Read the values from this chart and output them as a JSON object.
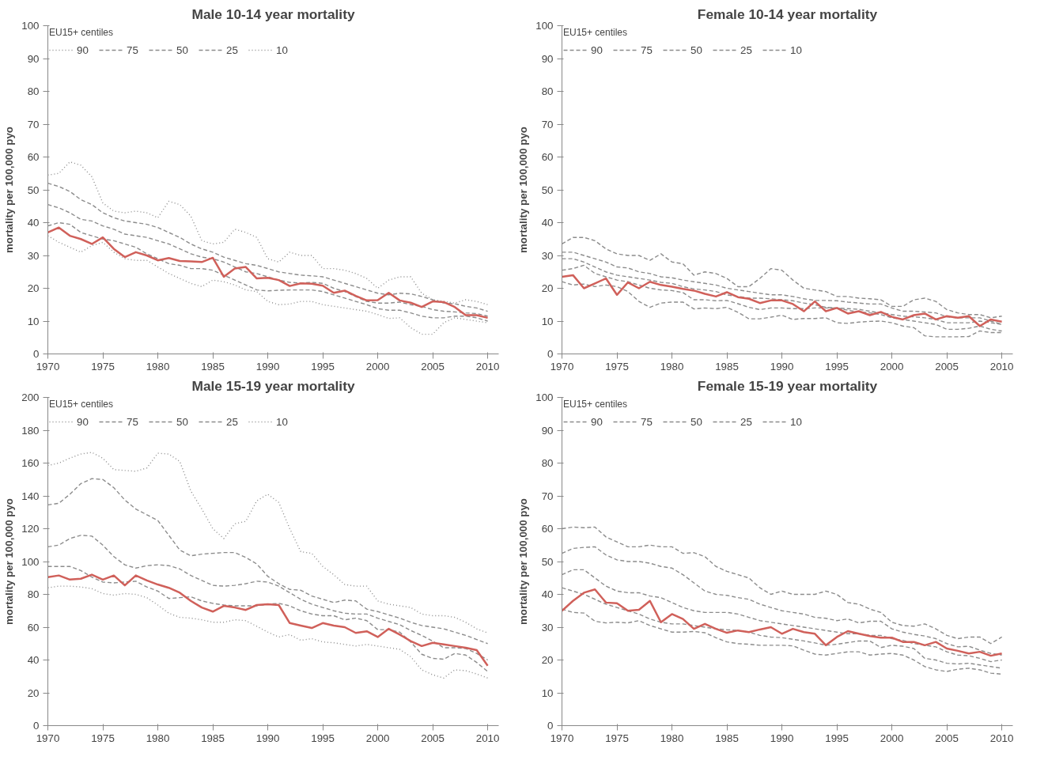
{
  "chart_data": [
    {
      "type": "line",
      "legend": "top left",
      "title": "Male 10-14 year mortality",
      "ylabel": "mortality per 100,000 pyo",
      "legend_title": "EU15+ centiles",
      "x": [
        1970,
        1971,
        1972,
        1973,
        1974,
        1975,
        1976,
        1977,
        1978,
        1979,
        1980,
        1981,
        1982,
        1983,
        1984,
        1985,
        1986,
        1987,
        1988,
        1989,
        1990,
        1991,
        1992,
        1993,
        1994,
        1995,
        1996,
        1997,
        1998,
        1999,
        2000,
        2001,
        2002,
        2003,
        2004,
        2005,
        2006,
        2007,
        2008,
        2009,
        2010
      ],
      "xlim": [
        1970,
        2011
      ],
      "xticks": [
        1970,
        1975,
        1980,
        1985,
        1990,
        1995,
        2000,
        2005,
        2010
      ],
      "ylim": [
        0,
        100
      ],
      "yticks": [
        0,
        10,
        20,
        30,
        40,
        50,
        60,
        70,
        80,
        90,
        100
      ],
      "series": [
        {
          "name": "90",
          "color": "#8c8c8c",
          "line_style": "dotted",
          "values": [
            54.5,
            55,
            58.5,
            57.5,
            54,
            46,
            43.5,
            43,
            43.5,
            43,
            41.5,
            46.5,
            45.5,
            42,
            34.5,
            33.5,
            34,
            38,
            37,
            35.5,
            29,
            28,
            31,
            30,
            30,
            26,
            26,
            25.5,
            24.5,
            23,
            20,
            22.5,
            23.5,
            23.5,
            18.5,
            16.5,
            16,
            15.5,
            16.5,
            16,
            15
          ]
        },
        {
          "name": "75",
          "color": "#8c8c8c",
          "line_style": "dashed",
          "values": [
            52,
            51,
            49.5,
            47,
            45.5,
            43,
            41.5,
            40.5,
            40,
            39.5,
            38.5,
            37,
            35.5,
            33.5,
            32,
            31,
            29.5,
            28.5,
            27.5,
            27,
            26,
            25,
            24.5,
            24,
            23.8,
            23.5,
            22.5,
            21.5,
            20.5,
            19.5,
            18.5,
            18,
            18.5,
            18.3,
            17.5,
            16.5,
            15.5,
            15.3,
            14.5,
            14,
            13
          ]
        },
        {
          "name": "50",
          "color": "#8c8c8c",
          "line_style": "dashed",
          "values": [
            45.5,
            44.5,
            43,
            41,
            40.5,
            39,
            38,
            36.5,
            36,
            35.5,
            34.5,
            33.5,
            32,
            30.5,
            29.5,
            29,
            28,
            26.5,
            25,
            24.5,
            23.5,
            22.5,
            21.8,
            21.6,
            21.8,
            21.5,
            20,
            19,
            17.5,
            16,
            15.5,
            15.5,
            15.8,
            15,
            14.5,
            13.5,
            13,
            12.8,
            12.5,
            12.3,
            11.5
          ]
        },
        {
          "name": "25",
          "color": "#8c8c8c",
          "line_style": "dashed",
          "values": [
            39,
            40,
            39.5,
            37,
            36,
            35,
            34.5,
            33.5,
            32.5,
            30.5,
            29,
            27.5,
            27,
            26,
            26,
            25.5,
            24,
            22.5,
            21,
            19.5,
            19.2,
            19.4,
            19.5,
            19.5,
            19.5,
            19,
            18,
            17,
            16,
            15,
            13.8,
            13.3,
            13.3,
            12.5,
            11.5,
            11,
            11,
            11.5,
            11.5,
            11,
            10
          ]
        },
        {
          "name": "10",
          "color": "#8c8c8c",
          "line_style": "dotted",
          "values": [
            36,
            34,
            32.5,
            31,
            33,
            34,
            31,
            29,
            28.5,
            28.5,
            26.5,
            24.5,
            23,
            21.5,
            20.5,
            22.5,
            22,
            21,
            19.5,
            19,
            16,
            15,
            15.2,
            16,
            16,
            15,
            14.5,
            14,
            13.5,
            13,
            12,
            10.8,
            11,
            8,
            6,
            6,
            9.5,
            11,
            10.5,
            10,
            9.5
          ]
        },
        {
          "color": "#d0605a",
          "line_style": "solid",
          "values": [
            37,
            38.5,
            36,
            35,
            33.5,
            35.5,
            32,
            29.5,
            31,
            30,
            28.5,
            29.2,
            28.3,
            28.2,
            28,
            29.3,
            23.5,
            26,
            26.5,
            23,
            23.2,
            22.5,
            20.7,
            21.5,
            21.4,
            20.8,
            18.6,
            19.3,
            17.7,
            16.3,
            16.4,
            18.6,
            16.3,
            15.6,
            14.3,
            16,
            15.8,
            14.3,
            11.8,
            11.8,
            11
          ]
        }
      ]
    },
    {
      "type": "line",
      "legend": "top left",
      "title": "Female 10-14 year mortality",
      "ylabel": "mortality per 100,000 pyo",
      "legend_title": "EU15+ centiles",
      "x": [
        1970,
        1971,
        1972,
        1973,
        1974,
        1975,
        1976,
        1977,
        1978,
        1979,
        1980,
        1981,
        1982,
        1983,
        1984,
        1985,
        1986,
        1987,
        1988,
        1989,
        1990,
        1991,
        1992,
        1993,
        1994,
        1995,
        1996,
        1997,
        1998,
        1999,
        2000,
        2001,
        2002,
        2003,
        2004,
        2005,
        2006,
        2007,
        2008,
        2009,
        2010
      ],
      "xlim": [
        1970,
        2011
      ],
      "xticks": [
        1970,
        1975,
        1980,
        1985,
        1990,
        1995,
        2000,
        2005,
        2010
      ],
      "ylim": [
        0,
        100
      ],
      "yticks": [
        0,
        10,
        20,
        30,
        40,
        50,
        60,
        70,
        80,
        90,
        100
      ],
      "series": [
        {
          "name": "90",
          "color": "#8c8c8c",
          "line_style": "dashed",
          "values": [
            33.5,
            35.5,
            35.5,
            34.5,
            32,
            30.5,
            30,
            30,
            28.5,
            30.5,
            28,
            27.5,
            24,
            25,
            24.5,
            23,
            20.5,
            20.5,
            23,
            26,
            25.5,
            22.5,
            20,
            19.5,
            19,
            17.5,
            17.5,
            17,
            16.8,
            16.5,
            14.5,
            14.5,
            16.5,
            17,
            16,
            13.5,
            12.5,
            12,
            12,
            11,
            11.5
          ]
        },
        {
          "name": "75",
          "color": "#8c8c8c",
          "line_style": "dashed",
          "values": [
            31,
            31,
            30,
            29,
            28,
            26.5,
            26.2,
            25,
            24.5,
            23.5,
            23.2,
            22.5,
            22,
            21.5,
            21,
            20,
            19.5,
            19,
            18.5,
            18,
            18,
            17.5,
            16.8,
            16.3,
            16.3,
            16.2,
            15.8,
            15.5,
            15.2,
            15.2,
            14,
            13,
            13,
            12.8,
            12.5,
            11.3,
            11,
            11,
            11,
            10,
            9
          ]
        },
        {
          "name": "50",
          "color": "#8c8c8c",
          "line_style": "dashed",
          "values": [
            29,
            29,
            28,
            26.5,
            25,
            24,
            23.5,
            23,
            22.5,
            21.8,
            21.5,
            20.5,
            19.8,
            19.5,
            19,
            18,
            17.5,
            17,
            17,
            16.8,
            16.5,
            16.2,
            15.5,
            15,
            14.2,
            14,
            13.8,
            13.6,
            13,
            12.5,
            12,
            11.5,
            11.3,
            11,
            10.5,
            9.5,
            9.5,
            9.5,
            10,
            9.5,
            9
          ]
        },
        {
          "name": "25",
          "color": "#8c8c8c",
          "line_style": "dashed",
          "values": [
            25.5,
            26,
            27,
            24.5,
            23.5,
            22.5,
            22,
            21,
            20,
            19.5,
            19.3,
            18.7,
            16.5,
            16.5,
            16.2,
            16.3,
            15.3,
            14.2,
            13.5,
            14,
            14,
            13.8,
            13.8,
            14,
            14,
            14,
            13.3,
            12.8,
            12.5,
            12,
            11,
            10.5,
            10,
            9.5,
            9,
            7.5,
            7.5,
            7.8,
            8.5,
            7.5,
            7
          ]
        },
        {
          "name": "10",
          "color": "#8c8c8c",
          "line_style": "dashed",
          "values": [
            22,
            21,
            21.3,
            20.5,
            21,
            20.5,
            19,
            16,
            14.2,
            15.5,
            15.8,
            15.8,
            13.7,
            14,
            13.8,
            14.2,
            12.7,
            10.7,
            10.7,
            11.2,
            11.8,
            10.5,
            10.8,
            10.8,
            11,
            9.5,
            9.3,
            9.7,
            9.9,
            10,
            9.5,
            8.5,
            8,
            5.5,
            5.2,
            5.2,
            5.2,
            5.3,
            7,
            6.5,
            6.5
          ]
        },
        {
          "color": "#d0605a",
          "line_style": "solid",
          "values": [
            23.5,
            24,
            20,
            21.5,
            23,
            18,
            21.8,
            20,
            22,
            21,
            20.5,
            19.8,
            19.3,
            18.3,
            17.5,
            18.8,
            17.3,
            16.8,
            15.5,
            16.3,
            16.3,
            15.2,
            13,
            16,
            13,
            14,
            12.3,
            13,
            11.8,
            12.8,
            11.3,
            10.5,
            11.8,
            12.3,
            10.5,
            11.5,
            11,
            11.5,
            8.5,
            10.5,
            9.8
          ]
        }
      ]
    },
    {
      "type": "line",
      "legend": "top left",
      "title": "Male 15-19 year mortality",
      "ylabel": "mortality per 100,000 pyo",
      "legend_title": "EU15+ centiles",
      "x": [
        1970,
        1971,
        1972,
        1973,
        1974,
        1975,
        1976,
        1977,
        1978,
        1979,
        1980,
        1981,
        1982,
        1983,
        1984,
        1985,
        1986,
        1987,
        1988,
        1989,
        1990,
        1991,
        1992,
        1993,
        1994,
        1995,
        1996,
        1997,
        1998,
        1999,
        2000,
        2001,
        2002,
        2003,
        2004,
        2005,
        2006,
        2007,
        2008,
        2009,
        2010
      ],
      "xlim": [
        1970,
        2011
      ],
      "xticks": [
        1970,
        1975,
        1980,
        1985,
        1990,
        1995,
        2000,
        2005,
        2010
      ],
      "ylim": [
        0,
        200
      ],
      "yticks": [
        0,
        20,
        40,
        60,
        80,
        100,
        120,
        140,
        160,
        180,
        200
      ],
      "series": [
        {
          "name": "90",
          "color": "#8c8c8c",
          "line_style": "dotted",
          "values": [
            158.5,
            160,
            163,
            165.5,
            166.5,
            163,
            156,
            155.5,
            155,
            157,
            166,
            165.5,
            161,
            143,
            132,
            120,
            114,
            123,
            124.5,
            137,
            141,
            136,
            120,
            106,
            105,
            97,
            92,
            86,
            85,
            85,
            76,
            74,
            73,
            72,
            68,
            67,
            67,
            66,
            63,
            59,
            56.5
          ]
        },
        {
          "name": "75",
          "color": "#8c8c8c",
          "line_style": "dashed",
          "values": [
            134.5,
            135.5,
            141,
            147.5,
            150.5,
            150,
            145,
            137.5,
            132,
            128.5,
            125,
            116,
            107,
            103.5,
            104.5,
            105,
            105.5,
            105.5,
            102.5,
            98.5,
            91,
            86.5,
            83,
            82.5,
            79,
            77,
            75,
            76.5,
            76,
            71,
            69.5,
            67.5,
            65.5,
            63,
            61,
            60,
            59,
            57,
            55,
            52.5,
            50
          ]
        },
        {
          "name": "50",
          "color": "#8c8c8c",
          "line_style": "dashed",
          "values": [
            109,
            110,
            114,
            116,
            115.5,
            110,
            103,
            98,
            96,
            97.5,
            98,
            97.5,
            95.5,
            91.5,
            88.5,
            85.5,
            85,
            85.5,
            86.5,
            88,
            87.5,
            85,
            81,
            77,
            74,
            72,
            70,
            68.5,
            68,
            68,
            65.5,
            63.5,
            61.5,
            58,
            55,
            51.5,
            47.5,
            47.5,
            47,
            44,
            40
          ]
        },
        {
          "name": "25",
          "color": "#8c8c8c",
          "line_style": "dashed",
          "values": [
            97,
            97,
            97,
            94.5,
            90.5,
            87.5,
            87,
            87.5,
            88,
            84.5,
            82,
            77.5,
            78,
            78.5,
            76,
            74.5,
            73.5,
            73,
            73,
            73,
            74,
            74.5,
            73,
            70,
            68,
            67,
            67,
            64.5,
            65.5,
            64,
            58.5,
            58.5,
            57,
            51,
            43.5,
            41,
            40.5,
            44,
            43,
            38.5,
            33
          ]
        },
        {
          "name": "10",
          "color": "#8c8c8c",
          "line_style": "dotted",
          "values": [
            84,
            85,
            85,
            84.5,
            83.5,
            80.5,
            79.5,
            80.5,
            80,
            78,
            73.5,
            68.5,
            66,
            65.5,
            64.5,
            63,
            63,
            64.5,
            64,
            60.5,
            57,
            54,
            55.5,
            52,
            53,
            51,
            50.5,
            49.5,
            48.5,
            49.5,
            48.5,
            47.5,
            46.5,
            42,
            34,
            31,
            29,
            34,
            33.5,
            31.5,
            29
          ]
        },
        {
          "color": "#d0605a",
          "line_style": "solid",
          "values": [
            90.5,
            91.5,
            89,
            89.5,
            92,
            89,
            91.5,
            85.5,
            91.5,
            88.5,
            86,
            84,
            81,
            76,
            72,
            69.5,
            73,
            72,
            70.5,
            73.5,
            74,
            73.5,
            62.5,
            61,
            59.5,
            62.5,
            61,
            60,
            56.5,
            57.5,
            54,
            59,
            55.5,
            51.5,
            48.5,
            50.5,
            49.5,
            48.5,
            47.5,
            46,
            36.5
          ]
        }
      ]
    },
    {
      "type": "line",
      "legend": "top left",
      "title": "Female 15-19 year mortality",
      "ylabel": "mortality per 100,000 pyo",
      "legend_title": "EU15+ centiles",
      "x": [
        1970,
        1971,
        1972,
        1973,
        1974,
        1975,
        1976,
        1977,
        1978,
        1979,
        1980,
        1981,
        1982,
        1983,
        1984,
        1985,
        1986,
        1987,
        1988,
        1989,
        1990,
        1991,
        1992,
        1993,
        1994,
        1995,
        1996,
        1997,
        1998,
        1999,
        2000,
        2001,
        2002,
        2003,
        2004,
        2005,
        2006,
        2007,
        2008,
        2009,
        2010
      ],
      "xlim": [
        1970,
        2011
      ],
      "xticks": [
        1970,
        1975,
        1980,
        1985,
        1990,
        1995,
        2000,
        2005,
        2010
      ],
      "ylim": [
        0,
        100
      ],
      "yticks": [
        0,
        10,
        20,
        30,
        40,
        50,
        60,
        70,
        80,
        90,
        100
      ],
      "series": [
        {
          "name": "90",
          "color": "#8c8c8c",
          "line_style": "dashed",
          "values": [
            60,
            60.5,
            60.3,
            60.5,
            57.5,
            56,
            54.5,
            54.5,
            55,
            54.5,
            54.5,
            52.5,
            52.7,
            51.5,
            48.5,
            47,
            46,
            45,
            42,
            40,
            41,
            40,
            40,
            40,
            41,
            40,
            37.5,
            37,
            35.5,
            34.5,
            31.5,
            30.5,
            30.3,
            31,
            29.5,
            27.5,
            26.5,
            27,
            27,
            25,
            27
          ]
        },
        {
          "name": "75",
          "color": "#8c8c8c",
          "line_style": "dashed",
          "values": [
            52.5,
            54,
            54.3,
            54.5,
            52,
            50.5,
            50,
            50,
            49.5,
            48.5,
            48,
            46,
            43.5,
            41,
            40,
            39.7,
            39,
            38.5,
            37,
            36,
            35,
            34.5,
            34,
            33,
            32.7,
            32,
            32.5,
            31.3,
            31.8,
            31.8,
            29.5,
            28.5,
            27.8,
            27.3,
            26.5,
            25,
            24,
            24.2,
            23,
            22,
            21.5
          ]
        },
        {
          "name": "50",
          "color": "#8c8c8c",
          "line_style": "dashed",
          "values": [
            46,
            47.5,
            47.5,
            45,
            42.5,
            41,
            40.5,
            40.5,
            39.5,
            39,
            37.5,
            36,
            35,
            34.5,
            34.5,
            34.5,
            34,
            33,
            32,
            31.5,
            31,
            30.5,
            30,
            29.5,
            29,
            28.5,
            28,
            28,
            27.5,
            27.5,
            26.5,
            26,
            25,
            24.5,
            24,
            22.5,
            21.5,
            21.3,
            20.5,
            19.5,
            20
          ]
        },
        {
          "name": "25",
          "color": "#8c8c8c",
          "line_style": "dashed",
          "values": [
            42,
            41,
            40,
            38.5,
            37,
            36,
            35,
            34,
            32.5,
            31.5,
            31,
            31,
            30.5,
            30,
            29.5,
            29.2,
            29,
            28.5,
            27.5,
            27,
            26.8,
            26.3,
            25.8,
            25.2,
            24.5,
            24.8,
            25.3,
            25.8,
            25.8,
            23.8,
            24.5,
            24.2,
            23.5,
            20.5,
            20,
            19,
            18.8,
            19,
            18.5,
            18,
            17.5
          ]
        },
        {
          "name": "10",
          "color": "#8c8c8c",
          "line_style": "dashed",
          "values": [
            35.5,
            34.5,
            34.3,
            31.8,
            31.3,
            31.5,
            31.3,
            32,
            30.5,
            29.5,
            28.5,
            28.5,
            28.7,
            28.3,
            26.8,
            25.5,
            25,
            24.8,
            24.5,
            24.5,
            24.5,
            24.3,
            23,
            21.8,
            21.5,
            22,
            22.5,
            22.5,
            21.5,
            21.8,
            22,
            21.5,
            20,
            18,
            17,
            16.5,
            17.2,
            17.5,
            17,
            16,
            15.7
          ]
        },
        {
          "color": "#d0605a",
          "line_style": "solid",
          "values": [
            35,
            38,
            40.5,
            41.5,
            37.5,
            37.3,
            35,
            35.3,
            38,
            31.5,
            34,
            32.5,
            29.5,
            31,
            29.5,
            28.3,
            29,
            28.5,
            29.3,
            30,
            28,
            29.5,
            28.5,
            28,
            24.5,
            27,
            28.8,
            28,
            27.3,
            26.8,
            26.8,
            25.5,
            25.5,
            24.5,
            25.5,
            23.5,
            22.8,
            22,
            22.5,
            21.3,
            22
          ]
        }
      ]
    }
  ]
}
